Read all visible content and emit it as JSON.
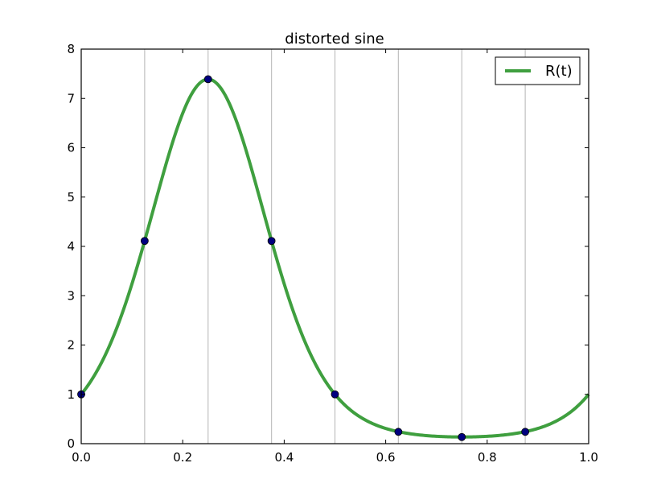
{
  "chart_data": {
    "type": "line",
    "title": "distorted sine",
    "xlabel": "",
    "ylabel": "",
    "xlim": [
      0.0,
      1.0
    ],
    "ylim": [
      0,
      8
    ],
    "x_ticks": [
      "0.0",
      "0.2",
      "0.4",
      "0.6",
      "0.8",
      "1.0"
    ],
    "x_tick_values": [
      0.0,
      0.2,
      0.4,
      0.6,
      0.8,
      1.0
    ],
    "y_ticks": [
      "0",
      "1",
      "2",
      "3",
      "4",
      "5",
      "6",
      "7",
      "8"
    ],
    "y_tick_values": [
      0,
      1,
      2,
      3,
      4,
      5,
      6,
      7,
      8
    ],
    "vertical_gridlines_at": [
      0.125,
      0.25,
      0.375,
      0.5,
      0.625,
      0.75,
      0.875
    ],
    "grid": "vertical lines only at sample positions",
    "legend_position": "top-right",
    "series": [
      {
        "name": "R(t)",
        "kind": "curve",
        "color": "#3f9f3f",
        "formula_note": "exp(2*sin(2*pi*t))",
        "x": [
          0.0,
          0.025,
          0.05,
          0.075,
          0.1,
          0.125,
          0.15,
          0.175,
          0.2,
          0.225,
          0.25,
          0.275,
          0.3,
          0.325,
          0.35,
          0.375,
          0.4,
          0.425,
          0.45,
          0.475,
          0.5,
          0.525,
          0.55,
          0.575,
          0.6,
          0.625,
          0.65,
          0.675,
          0.7,
          0.725,
          0.75,
          0.775,
          0.8,
          0.825,
          0.85,
          0.875,
          0.9,
          0.925,
          0.95,
          0.975,
          1.0
        ],
        "y": [
          1.0,
          1.37,
          1.85,
          2.45,
          3.23,
          4.11,
          5.04,
          5.98,
          6.69,
          7.24,
          7.39,
          7.24,
          6.69,
          5.98,
          5.04,
          4.11,
          3.23,
          2.45,
          1.85,
          1.37,
          1.0,
          0.73,
          0.54,
          0.41,
          0.3,
          0.24,
          0.2,
          0.17,
          0.15,
          0.14,
          0.135,
          0.14,
          0.15,
          0.17,
          0.2,
          0.24,
          0.3,
          0.41,
          0.54,
          0.73,
          1.0
        ]
      },
      {
        "name": "",
        "kind": "samples",
        "color": "#00007f",
        "x": [
          0.0,
          0.125,
          0.25,
          0.375,
          0.5,
          0.625,
          0.75,
          0.875
        ],
        "y": [
          1.0,
          4.11,
          7.39,
          4.11,
          1.0,
          0.24,
          0.135,
          0.24
        ]
      }
    ]
  }
}
